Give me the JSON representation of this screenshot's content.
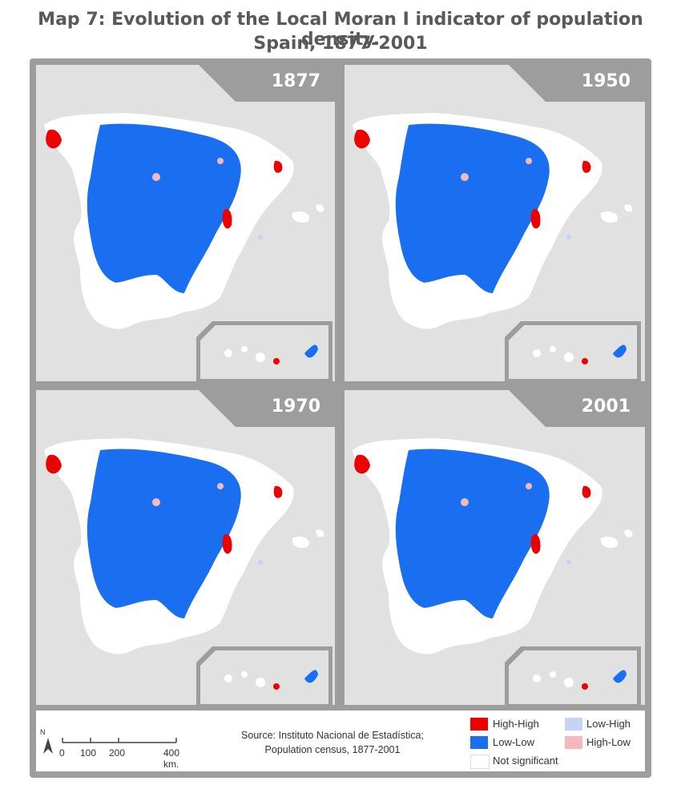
{
  "title_line1": "Map 7: Evolution of the Local Moran I indicator of population density.",
  "title_line2": "Spain, 1877-2001",
  "panels": [
    {
      "year": "1877"
    },
    {
      "year": "1950"
    },
    {
      "year": "1970"
    },
    {
      "year": "2001"
    }
  ],
  "legend": {
    "items": [
      {
        "label": "High-High",
        "color": "#ee0000"
      },
      {
        "label": "Low-Low",
        "color": "#1a6ff0"
      },
      {
        "label": "Not significant",
        "color": "#ffffff"
      },
      {
        "label": "Low-High",
        "color": "#c3d4f4"
      },
      {
        "label": "High-Low",
        "color": "#f5b8bd"
      }
    ]
  },
  "source_line1": "Source: Instituto Nacional de Estadística;",
  "source_line2": "Population census, 1877-2001",
  "scale": {
    "ticks": [
      "0",
      "100",
      "200",
      "400 km."
    ],
    "north": "N"
  }
}
